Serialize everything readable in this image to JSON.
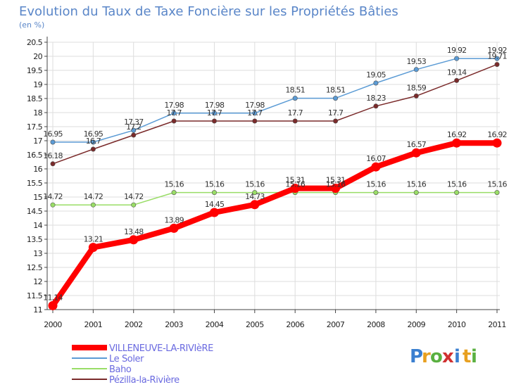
{
  "chart_data": {
    "type": "line",
    "title": "Evolution du Taux de Taxe Foncière sur les Propriétés Bâties",
    "subtitle": "(en %)",
    "xlabel": "",
    "ylabel": "",
    "x": [
      "2000",
      "2001",
      "2002",
      "2003",
      "2004",
      "2005",
      "2006",
      "2007",
      "2008",
      "2009",
      "2010",
      "2011"
    ],
    "ylim": [
      11,
      20.5
    ],
    "yticks": [
      "11",
      "11.5",
      "12",
      "12.5",
      "13",
      "13.5",
      "14",
      "14.5",
      "15",
      "15.5",
      "16",
      "16.5",
      "17",
      "17.5",
      "18",
      "18.5",
      "19",
      "19.5",
      "20",
      "20.5"
    ],
    "grid": true,
    "legend_position": "bottom-left",
    "series": [
      {
        "name": "VILLENEUVE-LA-RIVIèRE",
        "color": "#ff0000",
        "values": [
          11.14,
          13.21,
          13.48,
          13.89,
          14.45,
          14.73,
          15.31,
          15.31,
          16.07,
          16.57,
          16.92,
          16.92
        ],
        "labels": [
          "11.14",
          "13.21",
          "13.48",
          "13.89",
          "14.45",
          "14.73",
          "15.31",
          "15.31",
          "16.07",
          "16.57",
          "16.92",
          "16.92"
        ]
      },
      {
        "name": "Le Soler",
        "color": "#5b9bd5",
        "values": [
          16.95,
          16.95,
          17.37,
          17.98,
          17.98,
          17.98,
          18.51,
          18.51,
          19.05,
          19.53,
          19.92,
          19.92
        ],
        "labels": [
          "16.95",
          "16.95",
          "17.37",
          "17.98",
          "17.98",
          "17.98",
          "18.51",
          "18.51",
          "19.05",
          "19.53",
          "19.92",
          "19.92"
        ]
      },
      {
        "name": "Baho",
        "color": "#99dd66",
        "values": [
          14.72,
          14.72,
          14.72,
          15.16,
          15.16,
          15.16,
          15.16,
          15.16,
          15.16,
          15.16,
          15.16,
          15.16
        ],
        "labels": [
          "14.72",
          "14.72",
          "14.72",
          "15.16",
          "15.16",
          "15.16",
          "15.16",
          "15.16",
          "15.16",
          "15.16",
          "15.16",
          "15.16"
        ]
      },
      {
        "name": "Pézilla-la-Rivière",
        "color": "#7a2a2a",
        "values": [
          16.18,
          16.7,
          17.2,
          17.7,
          17.7,
          17.7,
          17.7,
          17.7,
          18.23,
          18.59,
          19.14,
          19.71
        ],
        "labels": [
          "16.18",
          "16.7",
          "17.2",
          "17.7",
          "17.7",
          "17.7",
          "17.7",
          "17.7",
          "18.23",
          "18.59",
          "19.14",
          "19.71"
        ]
      }
    ]
  },
  "branding": {
    "logo_letters": [
      "P",
      "r",
      "o",
      "x",
      "i",
      "t",
      "i"
    ],
    "logo_colors": [
      "#3a7fd0",
      "#e8a020",
      "#5ab040",
      "#d03030",
      "#3a7fd0",
      "#e8a020",
      "#5ab040"
    ]
  }
}
